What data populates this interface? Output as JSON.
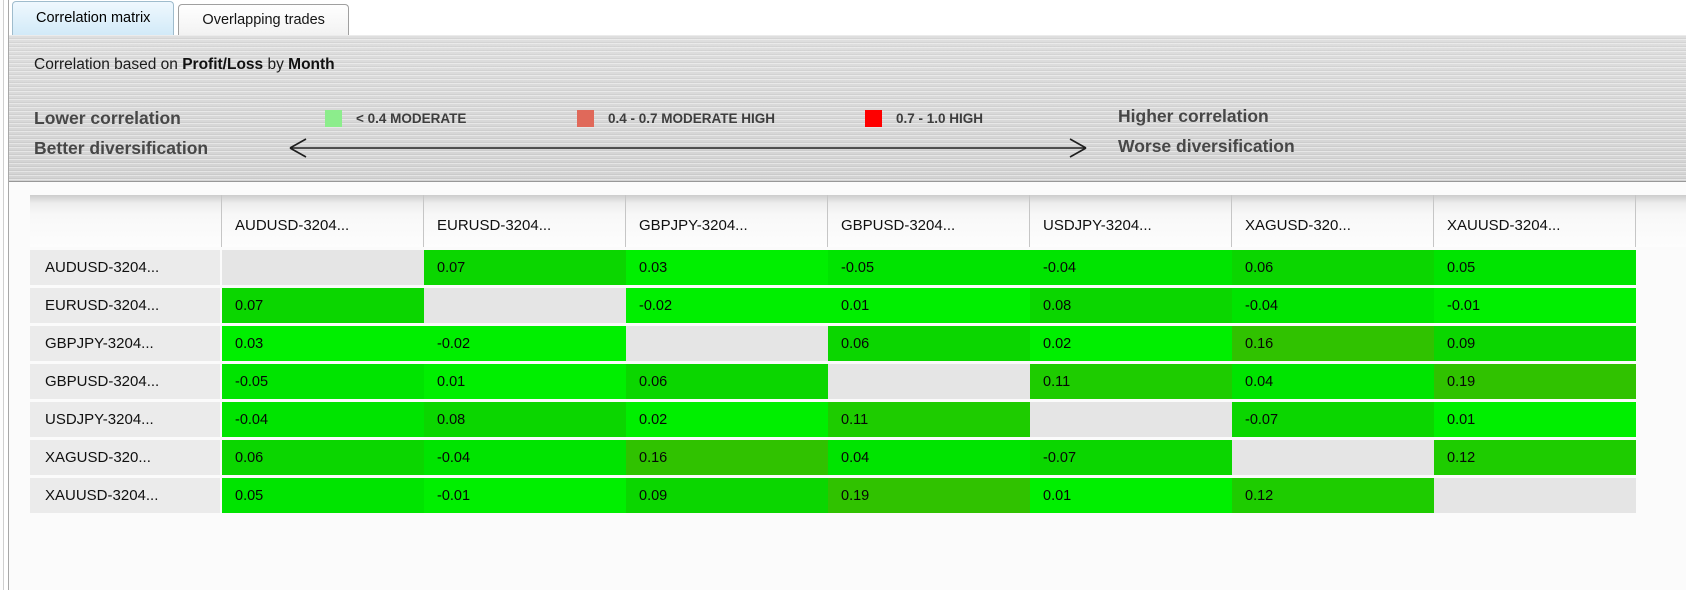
{
  "tabs": [
    {
      "label": "Correlation matrix",
      "active": true
    },
    {
      "label": "Overlapping trades",
      "active": false
    }
  ],
  "subtitle": {
    "prefix": "Correlation based on ",
    "metric": "Profit/Loss",
    "connector": " by ",
    "period": "Month"
  },
  "legend": {
    "left_label": {
      "line1": "Lower correlation",
      "line2": "Better diversification"
    },
    "right_label": {
      "line1": "Higher correlation",
      "line2": "Worse diversification"
    },
    "items": [
      {
        "label": "< 0.4 MODERATE",
        "color": "#8ced8c"
      },
      {
        "label": "0.4 - 0.7 MODERATE HIGH",
        "color": "#e0695a"
      },
      {
        "label": "0.7 - 1.0 HIGH",
        "color": "#fe0000"
      }
    ]
  },
  "chart_data": {
    "type": "heatmap",
    "title": "Correlation based on Profit/Loss by Month",
    "columns": [
      "AUDUSD-3204...",
      "EURUSD-3204...",
      "GBPJPY-3204...",
      "GBPUSD-3204...",
      "USDJPY-3204...",
      "XAGUSD-320...",
      "XAUUSD-3204..."
    ],
    "rows": [
      "AUDUSD-3204...",
      "EURUSD-3204...",
      "GBPJPY-3204...",
      "GBPUSD-3204...",
      "USDJPY-3204...",
      "XAGUSD-320...",
      "XAUUSD-3204..."
    ],
    "matrix": [
      [
        null,
        0.07,
        0.03,
        -0.05,
        -0.04,
        0.06,
        0.05
      ],
      [
        0.07,
        null,
        -0.02,
        0.01,
        0.08,
        -0.04,
        -0.01
      ],
      [
        0.03,
        -0.02,
        null,
        0.06,
        0.02,
        0.16,
        0.09
      ],
      [
        -0.05,
        0.01,
        0.06,
        null,
        0.11,
        0.04,
        0.19
      ],
      [
        -0.04,
        0.08,
        0.02,
        0.11,
        null,
        -0.07,
        0.01
      ],
      [
        0.06,
        -0.04,
        0.16,
        0.04,
        -0.07,
        null,
        0.12
      ],
      [
        0.05,
        -0.01,
        0.09,
        0.19,
        0.01,
        0.12,
        null
      ]
    ],
    "value_precision": 2
  },
  "matrix_style": {
    "diagonal_color": "#e5e5e5",
    "row_label_bg": "#ebebeb",
    "green_buckets": [
      {
        "max": 0.035,
        "color": "#00ef00"
      },
      {
        "max": 0.055,
        "color": "#00e400"
      },
      {
        "max": 0.095,
        "color": "#0bd600"
      },
      {
        "max": 0.135,
        "color": "#1ecc00"
      },
      {
        "max": 1.0,
        "color": "#30c200"
      }
    ]
  }
}
